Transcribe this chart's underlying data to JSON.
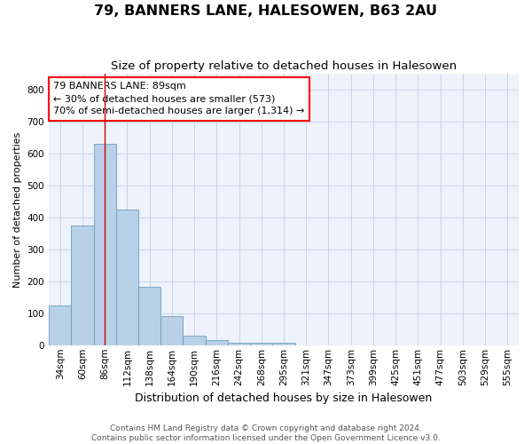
{
  "title1": "79, BANNERS LANE, HALESOWEN, B63 2AU",
  "title2": "Size of property relative to detached houses in Halesowen",
  "xlabel": "Distribution of detached houses by size in Halesowen",
  "ylabel": "Number of detached properties",
  "bar_values": [
    125,
    375,
    630,
    425,
    182,
    90,
    30,
    15,
    8,
    7,
    8,
    0,
    0,
    0,
    0,
    0,
    0,
    0,
    0,
    0,
    0
  ],
  "bar_labels": [
    "34sqm",
    "60sqm",
    "86sqm",
    "112sqm",
    "138sqm",
    "164sqm",
    "190sqm",
    "216sqm",
    "242sqm",
    "268sqm",
    "295sqm",
    "321sqm",
    "347sqm",
    "373sqm",
    "399sqm",
    "425sqm",
    "451sqm",
    "477sqm",
    "503sqm",
    "529sqm",
    "555sqm"
  ],
  "bar_color": "#b8d0e8",
  "bar_edge_color": "#6a9fc0",
  "grid_color": "#c8d4e8",
  "background_color": "#edf2fb",
  "vline_x": 2,
  "vline_color": "#cc0000",
  "annotation_line1": "79 BANNERS LANE: 89sqm",
  "annotation_line2": "← 30% of detached houses are smaller (573)",
  "annotation_line3": "70% of semi-detached houses are larger (1,314) →",
  "ylim": [
    0,
    850
  ],
  "yticks": [
    0,
    100,
    200,
    300,
    400,
    500,
    600,
    700,
    800
  ],
  "footer_text": "Contains HM Land Registry data © Crown copyright and database right 2024.\nContains public sector information licensed under the Open Government Licence v3.0.",
  "title1_fontsize": 11.5,
  "title2_fontsize": 9.5,
  "xlabel_fontsize": 9,
  "ylabel_fontsize": 8,
  "tick_fontsize": 7.5,
  "annotation_fontsize": 8,
  "footer_fontsize": 6.5
}
